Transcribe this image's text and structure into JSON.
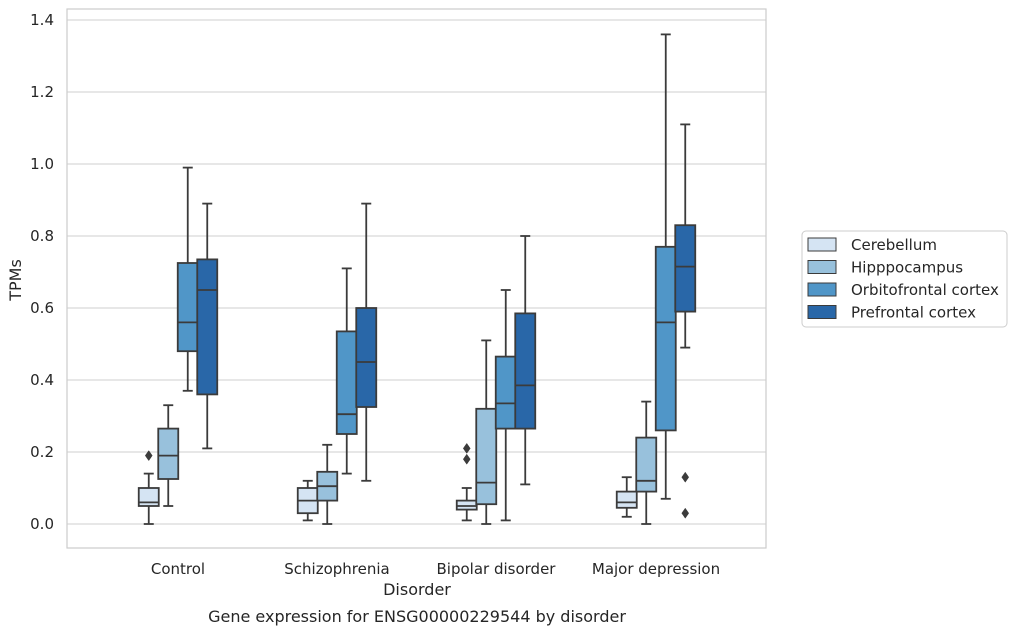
{
  "chart_data": {
    "type": "box",
    "title": "Gene expression for ENSG00000229544 by disorder",
    "xlabel": "Disorder",
    "ylabel": "TPMs",
    "ylim": [
      -0.065,
      1.43
    ],
    "yticks": [
      0.0,
      0.2,
      0.4,
      0.6,
      0.8,
      1.0,
      1.2,
      1.4
    ],
    "ytick_labels": [
      "0.0",
      "0.2",
      "0.4",
      "0.6",
      "0.8",
      "1.0",
      "1.2",
      "1.4"
    ],
    "grid": "horizontal",
    "legend_position": "right",
    "categories": [
      "Control",
      "Schizophrenia",
      "Bipolar disorder",
      "Major depression"
    ],
    "series": [
      {
        "name": "Cerebellum",
        "color": "#d5e4f3",
        "boxes": [
          {
            "whisker_low": 0.0,
            "q1": 0.05,
            "median": 0.06,
            "q3": 0.1,
            "whisker_high": 0.14,
            "outliers": [
              0.19
            ]
          },
          {
            "whisker_low": 0.01,
            "q1": 0.03,
            "median": 0.065,
            "q3": 0.1,
            "whisker_high": 0.12,
            "outliers": []
          },
          {
            "whisker_low": 0.01,
            "q1": 0.04,
            "median": 0.05,
            "q3": 0.065,
            "whisker_high": 0.1,
            "outliers": [
              0.18,
              0.21
            ]
          },
          {
            "whisker_low": 0.02,
            "q1": 0.045,
            "median": 0.06,
            "q3": 0.09,
            "whisker_high": 0.13,
            "outliers": []
          }
        ]
      },
      {
        "name": "Hipppocampus",
        "color": "#98c1dc",
        "boxes": [
          {
            "whisker_low": 0.05,
            "q1": 0.125,
            "median": 0.19,
            "q3": 0.265,
            "whisker_high": 0.33,
            "outliers": []
          },
          {
            "whisker_low": 0.0,
            "q1": 0.065,
            "median": 0.105,
            "q3": 0.145,
            "whisker_high": 0.22,
            "outliers": []
          },
          {
            "whisker_low": 0.0,
            "q1": 0.055,
            "median": 0.115,
            "q3": 0.32,
            "whisker_high": 0.51,
            "outliers": []
          },
          {
            "whisker_low": 0.0,
            "q1": 0.09,
            "median": 0.12,
            "q3": 0.24,
            "whisker_high": 0.34,
            "outliers": []
          }
        ]
      },
      {
        "name": "Orbitofrontal cortex",
        "color": "#5096c8",
        "boxes": [
          {
            "whisker_low": 0.37,
            "q1": 0.48,
            "median": 0.56,
            "q3": 0.725,
            "whisker_high": 0.99,
            "outliers": []
          },
          {
            "whisker_low": 0.14,
            "q1": 0.25,
            "median": 0.305,
            "q3": 0.535,
            "whisker_high": 0.71,
            "outliers": []
          },
          {
            "whisker_low": 0.01,
            "q1": 0.265,
            "median": 0.335,
            "q3": 0.465,
            "whisker_high": 0.65,
            "outliers": []
          },
          {
            "whisker_low": 0.07,
            "q1": 0.26,
            "median": 0.56,
            "q3": 0.77,
            "whisker_high": 1.36,
            "outliers": []
          }
        ]
      },
      {
        "name": "Prefrontal cortex",
        "color": "#2967a8",
        "boxes": [
          {
            "whisker_low": 0.21,
            "q1": 0.36,
            "median": 0.65,
            "q3": 0.735,
            "whisker_high": 0.89,
            "outliers": []
          },
          {
            "whisker_low": 0.12,
            "q1": 0.325,
            "median": 0.45,
            "q3": 0.6,
            "whisker_high": 0.89,
            "outliers": []
          },
          {
            "whisker_low": 0.11,
            "q1": 0.265,
            "median": 0.385,
            "q3": 0.585,
            "whisker_high": 0.8,
            "outliers": []
          },
          {
            "whisker_low": 0.49,
            "q1": 0.59,
            "median": 0.715,
            "q3": 0.83,
            "whisker_high": 1.11,
            "outliers": [
              0.03,
              0.13
            ]
          }
        ]
      }
    ]
  }
}
